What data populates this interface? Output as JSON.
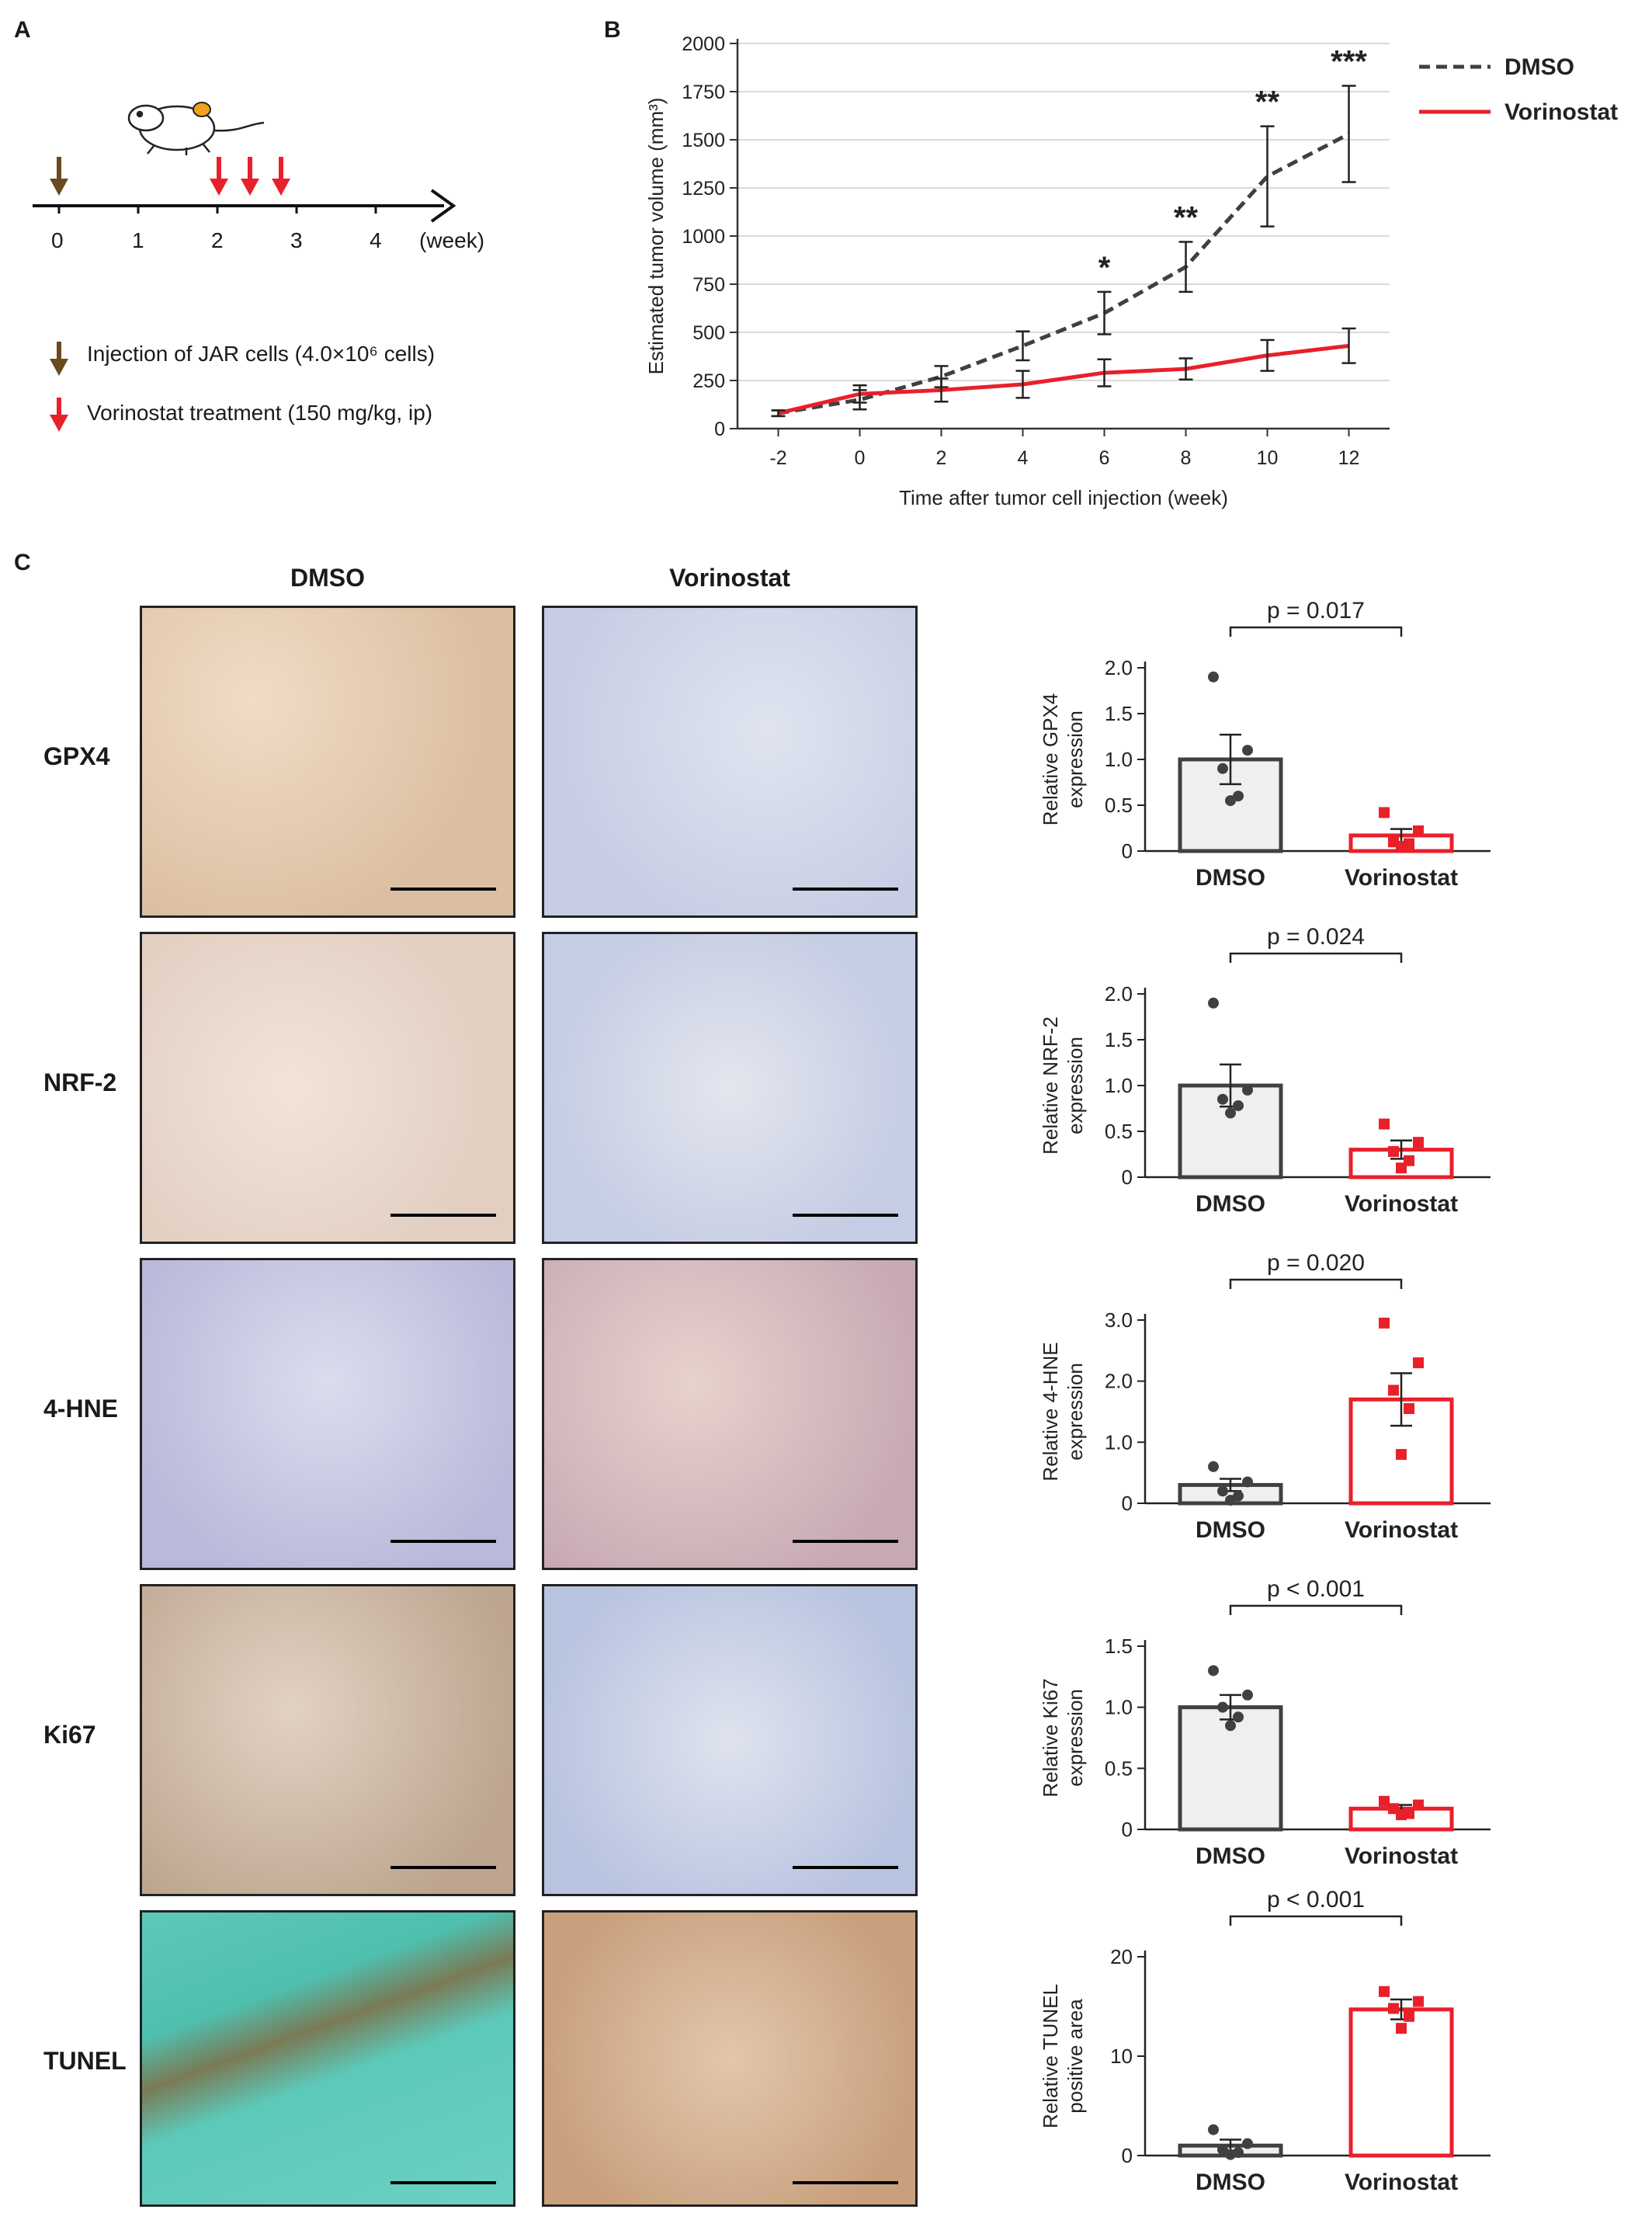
{
  "panels": {
    "a": "A",
    "b": "B",
    "c": "C"
  },
  "panel_a": {
    "timeline_ticks": [
      "0",
      "1",
      "2",
      "3",
      "4"
    ],
    "unit_label": "(week)",
    "legend": [
      {
        "label": "Injection of JAR cells (4.0×10⁶ cells)",
        "color": "#6b4a1e"
      },
      {
        "label": "Vorinostat treatment (150 mg/kg, ip)",
        "color": "#e8202a"
      }
    ]
  },
  "panel_c": {
    "column_headers": [
      "DMSO",
      "Vorinostat"
    ],
    "rows": [
      {
        "label": "GPX4",
        "dmso_stain": "#e6cdb5",
        "vor_stain": "#d3d8ea"
      },
      {
        "label": "NRF-2",
        "dmso_stain": "#ecdcd2",
        "vor_stain": "#d5dbea"
      },
      {
        "label": "4-HNE",
        "dmso_stain": "#cfcfe6",
        "vor_stain": "#dcc4c4"
      },
      {
        "label": "Ki67",
        "dmso_stain": "#d8c6b8",
        "vor_stain": "#d0d8e8"
      },
      {
        "label": "TUNEL",
        "dmso_stain": "#5fc7b8",
        "vor_stain": "#d8b89c"
      }
    ]
  },
  "chart_data": [
    {
      "type": "line",
      "x": [
        -2,
        0,
        2,
        4,
        6,
        8,
        10,
        12
      ],
      "series": [
        {
          "name": "DMSO",
          "color": "#404040",
          "style": "dashed",
          "values": [
            80,
            150,
            270,
            430,
            600,
            840,
            1310,
            1530
          ],
          "errors": [
            15,
            50,
            55,
            75,
            110,
            130,
            260,
            250
          ]
        },
        {
          "name": "Vorinostat",
          "color": "#e8202a",
          "style": "solid",
          "values": [
            80,
            180,
            200,
            230,
            290,
            310,
            380,
            430
          ],
          "errors": [
            15,
            45,
            60,
            70,
            70,
            55,
            80,
            90
          ]
        }
      ],
      "significance": [
        {
          "x": 6,
          "label": "*"
        },
        {
          "x": 8,
          "label": "**"
        },
        {
          "x": 10,
          "label": "**"
        },
        {
          "x": 12,
          "label": "***"
        }
      ],
      "xlabel": "Time after tumor cell injection (week)",
      "ylabel": "Estimated tumor volume (mm³)",
      "xticks": [
        "-2",
        "0",
        "2",
        "4",
        "6",
        "8",
        "10",
        "12"
      ],
      "yticks": [
        "0",
        "250",
        "500",
        "750",
        "1000",
        "1250",
        "1500",
        "1750",
        "2000"
      ],
      "ylim": [
        0,
        2000
      ],
      "grid": true,
      "legend_position": "top-right"
    },
    {
      "type": "bar",
      "categories": [
        "DMSO",
        "Vorinostat"
      ],
      "values": [
        1.0,
        0.17
      ],
      "errors": [
        0.27,
        0.07
      ],
      "points": [
        [
          1.9,
          1.1,
          0.9,
          0.6,
          0.55
        ],
        [
          0.42,
          0.22,
          0.1,
          0.08,
          0.05
        ]
      ],
      "ylabel": "Relative GPX4\nexpression",
      "ylim": [
        0,
        2.0
      ],
      "yticks": [
        "0",
        "0.5",
        "1.0",
        "1.5",
        "2.0"
      ],
      "pvalue": "p = 0.017"
    },
    {
      "type": "bar",
      "categories": [
        "DMSO",
        "Vorinostat"
      ],
      "values": [
        1.0,
        0.3
      ],
      "errors": [
        0.23,
        0.1
      ],
      "points": [
        [
          1.9,
          0.95,
          0.85,
          0.78,
          0.7
        ],
        [
          0.58,
          0.38,
          0.28,
          0.18,
          0.1
        ]
      ],
      "ylabel": "Relative NRF-2\nexpression",
      "ylim": [
        0,
        2.0
      ],
      "yticks": [
        "0",
        "0.5",
        "1.0",
        "1.5",
        "2.0"
      ],
      "pvalue": "p = 0.024"
    },
    {
      "type": "bar",
      "categories": [
        "DMSO",
        "Vorinostat"
      ],
      "values": [
        0.3,
        1.7
      ],
      "errors": [
        0.1,
        0.43
      ],
      "points": [
        [
          0.6,
          0.35,
          0.2,
          0.12,
          0.05
        ],
        [
          2.95,
          2.3,
          1.85,
          1.55,
          0.8
        ]
      ],
      "ylabel": "Relative 4-HNE\nexpression",
      "ylim": [
        0,
        3.0
      ],
      "yticks": [
        "0",
        "1.0",
        "2.0",
        "3.0"
      ],
      "pvalue": "p = 0.020"
    },
    {
      "type": "bar",
      "categories": [
        "DMSO",
        "Vorinostat"
      ],
      "values": [
        1.0,
        0.17
      ],
      "errors": [
        0.1,
        0.03
      ],
      "points": [
        [
          1.3,
          1.1,
          1.0,
          0.92,
          0.85
        ],
        [
          0.23,
          0.2,
          0.17,
          0.13,
          0.12
        ]
      ],
      "ylabel": "Relative Ki67\nexpression",
      "ylim": [
        0,
        1.5
      ],
      "yticks": [
        "0",
        "0.5",
        "1.0",
        "1.5"
      ],
      "pvalue": "p < 0.001"
    },
    {
      "type": "bar",
      "categories": [
        "DMSO",
        "Vorinostat"
      ],
      "values": [
        1.0,
        14.7
      ],
      "errors": [
        0.6,
        1.0
      ],
      "points": [
        [
          2.6,
          1.2,
          0.6,
          0.3,
          0.1
        ],
        [
          16.5,
          15.5,
          14.8,
          14.0,
          12.8
        ]
      ],
      "ylabel": "Relative TUNEL\npositive area",
      "ylim": [
        0,
        20
      ],
      "yticks": [
        "0",
        "10",
        "20"
      ],
      "pvalue": "p < 0.001"
    }
  ]
}
